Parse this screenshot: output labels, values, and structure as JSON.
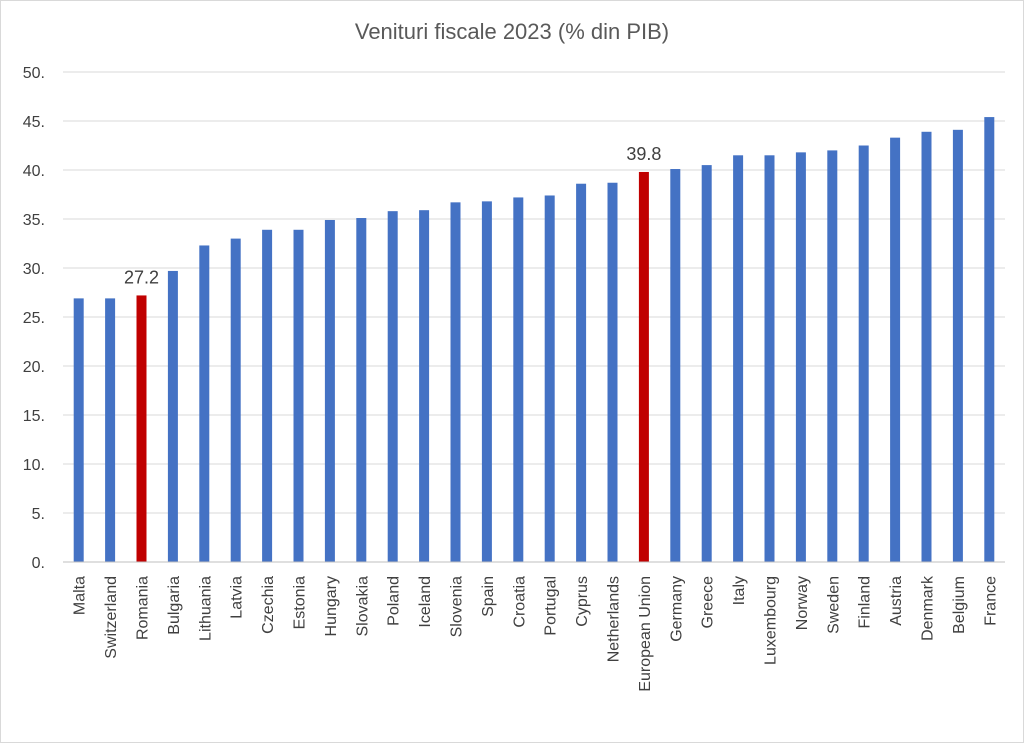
{
  "chart_data": {
    "type": "bar",
    "title": "Venituri fiscale 2023 (% din PIB)",
    "xlabel": "",
    "ylabel": "",
    "ylim": [
      0,
      50
    ],
    "yticks": [
      "0.",
      "5.",
      "10.",
      "15.",
      "20.",
      "25.",
      "30.",
      "35.",
      "40.",
      "45.",
      "50."
    ],
    "grid": true,
    "legend": "none",
    "colors": {
      "default": "#4472C4",
      "highlight": "#C00000"
    },
    "categories": [
      "Malta",
      "Switzerland",
      "Romania",
      "Bulgaria",
      "Lithuania",
      "Latvia",
      "Czechia",
      "Estonia",
      "Hungary",
      "Slovakia",
      "Poland",
      "Iceland",
      "Slovenia",
      "Spain",
      "Croatia",
      "Portugal",
      "Cyprus",
      "Netherlands",
      "European Union",
      "Germany",
      "Greece",
      "Italy",
      "Luxembourg",
      "Norway",
      "Sweden",
      "Finland",
      "Austria",
      "Denmark",
      "Belgium",
      "France"
    ],
    "values": [
      26.9,
      26.9,
      27.2,
      29.7,
      32.3,
      33.0,
      33.9,
      33.9,
      34.9,
      35.1,
      35.8,
      35.9,
      36.7,
      36.8,
      37.2,
      37.4,
      38.6,
      38.7,
      39.8,
      40.1,
      40.5,
      41.5,
      41.5,
      41.8,
      42.0,
      42.5,
      43.3,
      43.9,
      44.1,
      45.4
    ],
    "highlighted": [
      "Romania",
      "European Union"
    ],
    "data_labels": [
      {
        "category": "Romania",
        "text": "27.2"
      },
      {
        "category": "European Union",
        "text": "39.8"
      }
    ]
  }
}
